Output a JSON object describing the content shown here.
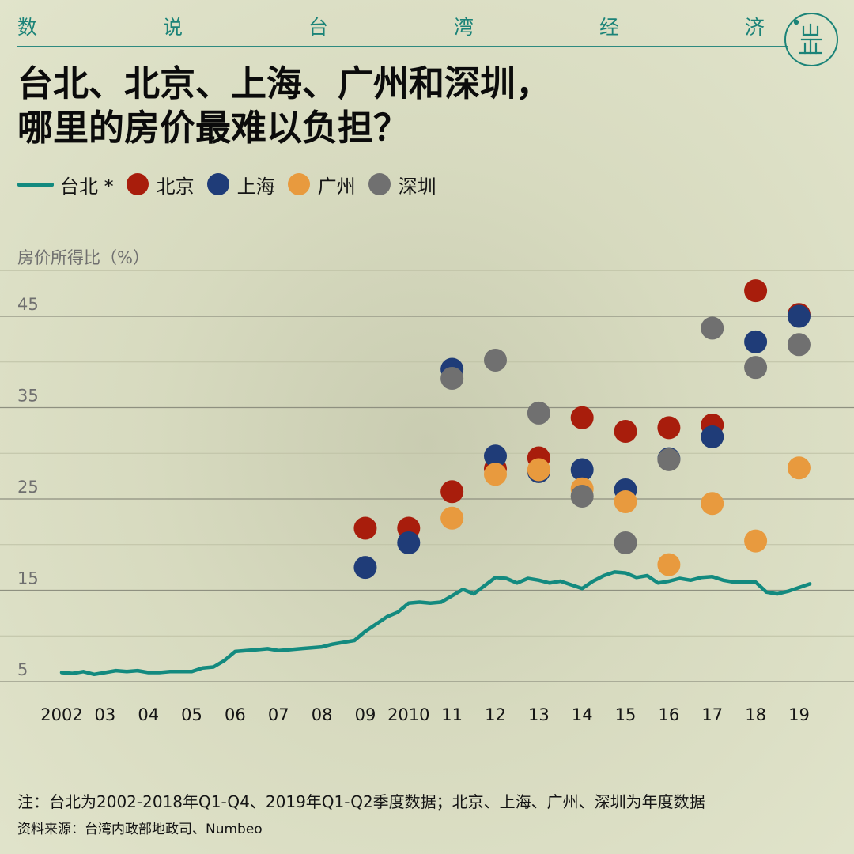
{
  "header": {
    "series_title_chars": [
      "数",
      "说",
      "台",
      "湾",
      "经",
      "济"
    ],
    "headline_line1": "台北、北京、上海、广州和深圳，",
    "headline_line2": "哪里的房价最难以负担？"
  },
  "legend": {
    "taipei": "台北 *",
    "beijing": "北京",
    "shanghai": "上海",
    "guangzhou": "广州",
    "shenzhen": "深圳"
  },
  "footer": {
    "note": "注：台北为2002-2018年Q1-Q4、2019年Q1-Q2季度数据；北京、上海、广州、深圳为年度数据",
    "source": "资料来源：台湾内政部地政司、Numbeo"
  },
  "colors": {
    "taipei": "#138a7f",
    "beijing": "#a81d0c",
    "shanghai": "#1f3c78",
    "guangzhou": "#e89a3e",
    "shenzhen": "#707070",
    "accent": "#1b8378"
  },
  "chart_data": {
    "type": "scatter",
    "ylabel": "房价所得比（%）",
    "ylim": [
      2,
      50
    ],
    "yticks": [
      5,
      15,
      25,
      35,
      45
    ],
    "xlim": [
      2001.5,
      2019.6
    ],
    "xticks": [
      {
        "x": 2002,
        "label": "2002"
      },
      {
        "x": 2003,
        "label": "03"
      },
      {
        "x": 2004,
        "label": "04"
      },
      {
        "x": 2005,
        "label": "05"
      },
      {
        "x": 2006,
        "label": "06"
      },
      {
        "x": 2007,
        "label": "07"
      },
      {
        "x": 2008,
        "label": "08"
      },
      {
        "x": 2009,
        "label": "09"
      },
      {
        "x": 2010,
        "label": "2010"
      },
      {
        "x": 2011,
        "label": "11"
      },
      {
        "x": 2012,
        "label": "12"
      },
      {
        "x": 2013,
        "label": "13"
      },
      {
        "x": 2014,
        "label": "14"
      },
      {
        "x": 2015,
        "label": "15"
      },
      {
        "x": 2016,
        "label": "16"
      },
      {
        "x": 2017,
        "label": "17"
      },
      {
        "x": 2018,
        "label": "18"
      },
      {
        "x": 2019,
        "label": "19"
      }
    ],
    "series": [
      {
        "name": "台北 *",
        "kind": "line",
        "color_key": "taipei",
        "points": [
          [
            2002.0,
            6.0
          ],
          [
            2002.25,
            5.9
          ],
          [
            2002.5,
            6.1
          ],
          [
            2002.75,
            5.8
          ],
          [
            2003.0,
            6.0
          ],
          [
            2003.25,
            6.2
          ],
          [
            2003.5,
            6.1
          ],
          [
            2003.75,
            6.2
          ],
          [
            2004.0,
            6.0
          ],
          [
            2004.25,
            6.0
          ],
          [
            2004.5,
            6.1
          ],
          [
            2004.75,
            6.1
          ],
          [
            2005.0,
            6.1
          ],
          [
            2005.25,
            6.5
          ],
          [
            2005.5,
            6.6
          ],
          [
            2005.75,
            7.3
          ],
          [
            2006.0,
            8.3
          ],
          [
            2006.25,
            8.4
          ],
          [
            2006.5,
            8.5
          ],
          [
            2006.75,
            8.6
          ],
          [
            2007.0,
            8.4
          ],
          [
            2007.25,
            8.5
          ],
          [
            2007.5,
            8.6
          ],
          [
            2007.75,
            8.7
          ],
          [
            2008.0,
            8.8
          ],
          [
            2008.25,
            9.1
          ],
          [
            2008.5,
            9.3
          ],
          [
            2008.75,
            9.5
          ],
          [
            2009.0,
            10.5
          ],
          [
            2009.25,
            11.3
          ],
          [
            2009.5,
            12.1
          ],
          [
            2009.75,
            12.6
          ],
          [
            2010.0,
            13.6
          ],
          [
            2010.25,
            13.7
          ],
          [
            2010.5,
            13.6
          ],
          [
            2010.75,
            13.7
          ],
          [
            2011.0,
            14.4
          ],
          [
            2011.25,
            15.1
          ],
          [
            2011.5,
            14.6
          ],
          [
            2011.75,
            15.5
          ],
          [
            2012.0,
            16.4
          ],
          [
            2012.25,
            16.3
          ],
          [
            2012.5,
            15.8
          ],
          [
            2012.75,
            16.3
          ],
          [
            2013.0,
            16.1
          ],
          [
            2013.25,
            15.8
          ],
          [
            2013.5,
            16.0
          ],
          [
            2013.75,
            15.6
          ],
          [
            2014.0,
            15.2
          ],
          [
            2014.25,
            16.0
          ],
          [
            2014.5,
            16.6
          ],
          [
            2014.75,
            17.0
          ],
          [
            2015.0,
            16.9
          ],
          [
            2015.25,
            16.4
          ],
          [
            2015.5,
            16.6
          ],
          [
            2015.75,
            15.8
          ],
          [
            2016.0,
            16.0
          ],
          [
            2016.25,
            16.3
          ],
          [
            2016.5,
            16.1
          ],
          [
            2016.75,
            16.4
          ],
          [
            2017.0,
            16.5
          ],
          [
            2017.25,
            16.1
          ],
          [
            2017.5,
            15.9
          ],
          [
            2017.75,
            15.9
          ],
          [
            2018.0,
            15.9
          ],
          [
            2018.25,
            14.8
          ],
          [
            2018.5,
            14.6
          ],
          [
            2018.75,
            14.9
          ],
          [
            2019.0,
            15.3
          ],
          [
            2019.25,
            15.7
          ]
        ]
      },
      {
        "name": "北京",
        "kind": "scatter",
        "color_key": "beijing",
        "points": [
          [
            2009,
            21.8
          ],
          [
            2010,
            21.8
          ],
          [
            2011,
            25.8
          ],
          [
            2012,
            28.3
          ],
          [
            2013,
            29.5
          ],
          [
            2014,
            33.9
          ],
          [
            2015,
            32.4
          ],
          [
            2016,
            32.8
          ],
          [
            2017,
            33.1
          ],
          [
            2018,
            47.8
          ],
          [
            2019,
            45.2
          ]
        ]
      },
      {
        "name": "上海",
        "kind": "scatter",
        "color_key": "shanghai",
        "points": [
          [
            2009,
            17.5
          ],
          [
            2010,
            20.2
          ],
          [
            2011,
            39.2
          ],
          [
            2012,
            29.7
          ],
          [
            2013,
            28.0
          ],
          [
            2014,
            28.2
          ],
          [
            2015,
            26.0
          ],
          [
            2016,
            29.4
          ],
          [
            2017,
            31.8
          ],
          [
            2018,
            42.2
          ],
          [
            2019,
            45.0
          ]
        ]
      },
      {
        "name": "广州",
        "kind": "scatter",
        "color_key": "guangzhou",
        "points": [
          [
            2011,
            22.9
          ],
          [
            2012,
            27.7
          ],
          [
            2013,
            28.2
          ],
          [
            2014,
            26.1
          ],
          [
            2015,
            24.7
          ],
          [
            2016,
            17.8
          ],
          [
            2017,
            24.5
          ],
          [
            2018,
            20.4
          ],
          [
            2019,
            28.4
          ]
        ]
      },
      {
        "name": "深圳",
        "kind": "scatter",
        "color_key": "shenzhen",
        "points": [
          [
            2011,
            38.2
          ],
          [
            2012,
            40.2
          ],
          [
            2013,
            34.4
          ],
          [
            2014,
            25.3
          ],
          [
            2015,
            20.2
          ],
          [
            2016,
            29.3
          ],
          [
            2017,
            43.7
          ],
          [
            2018,
            39.4
          ],
          [
            2019,
            41.9
          ]
        ]
      }
    ],
    "grid": true,
    "legend_position": "top-left"
  }
}
